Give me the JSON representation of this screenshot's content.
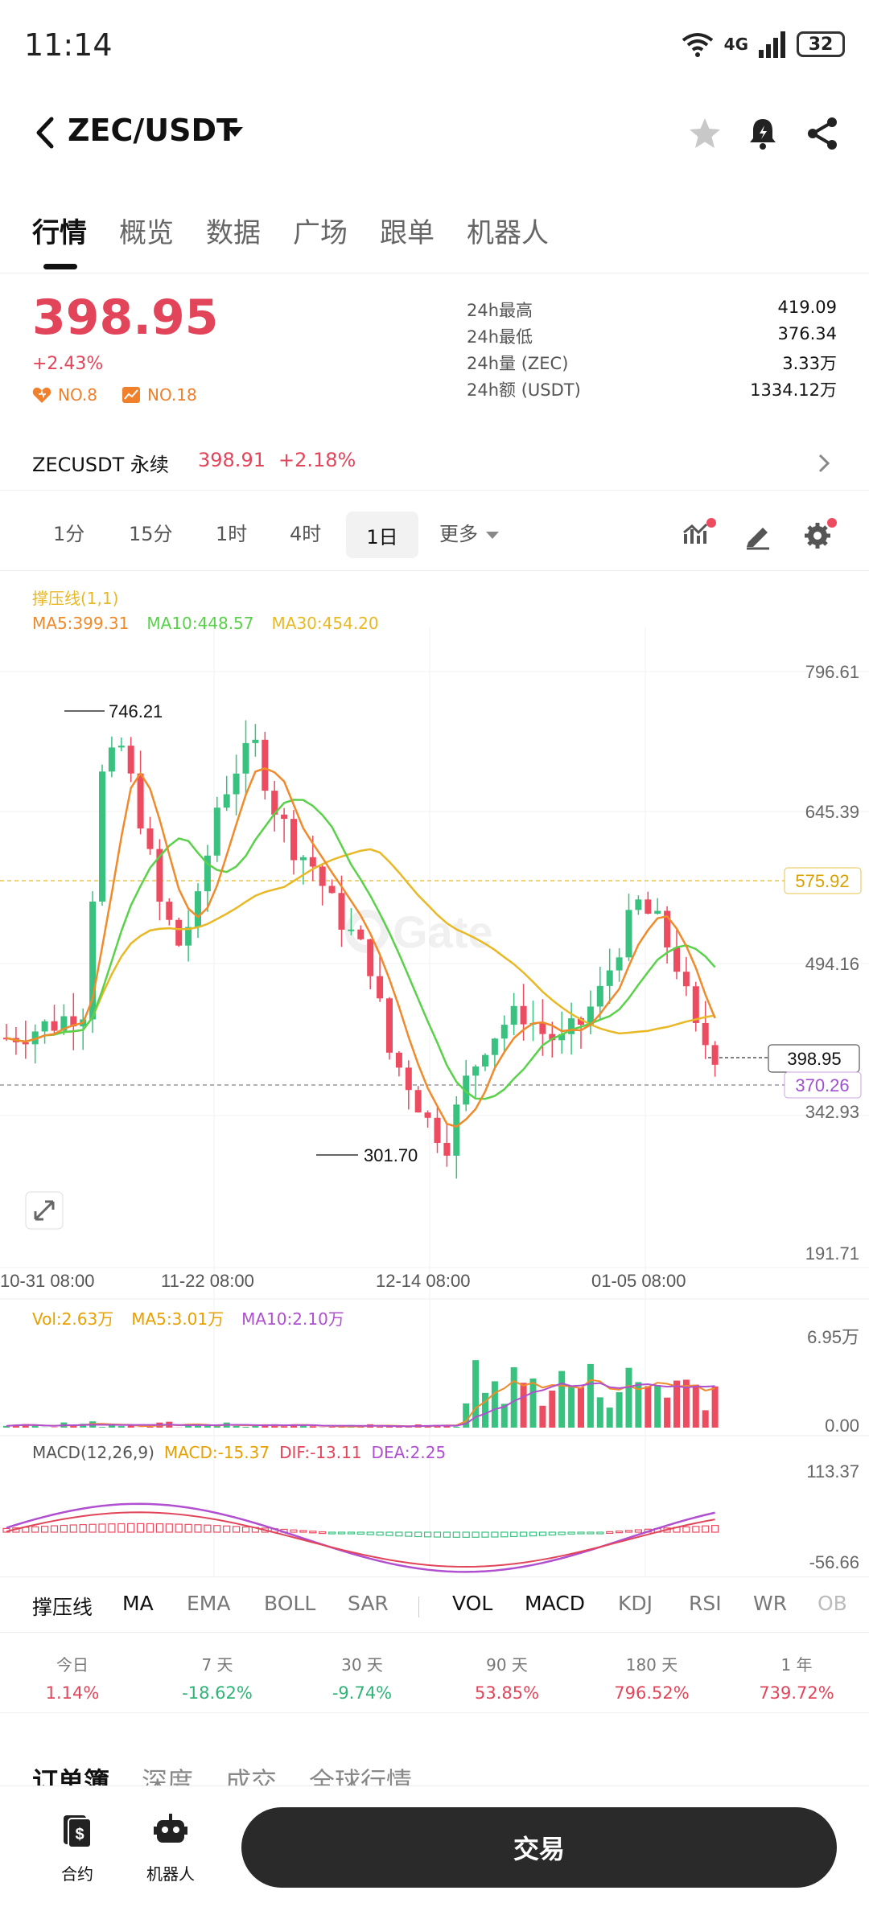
{
  "status": {
    "time": "11:14",
    "network": "4G",
    "battery": "32"
  },
  "header": {
    "pair": "ZEC/USDT"
  },
  "tabs": [
    "行情",
    "概览",
    "数据",
    "广场",
    "跟单",
    "机器人"
  ],
  "price": {
    "last": "398.95",
    "change": "+2.43%",
    "rank1": "NO.8",
    "rank2": "NO.18"
  },
  "stats": [
    {
      "label": "24h最高",
      "value": "419.09"
    },
    {
      "label": "24h最低",
      "value": "376.34"
    },
    {
      "label": "24h量 (ZEC)",
      "value": "3.33万"
    },
    {
      "label": "24h额 (USDT)",
      "value": "1334.12万"
    }
  ],
  "perp": {
    "name": "ZECUSDT 永续",
    "price": "398.91",
    "change": "+2.18%"
  },
  "timeframes": [
    "1分",
    "15分",
    "1时",
    "4时",
    "1日",
    "更多"
  ],
  "legend": {
    "line1": "撑压线(1,1)",
    "ma5": "MA5:399.31",
    "ma10": "MA10:448.57",
    "ma30": "MA30:454.20"
  },
  "chart_data": {
    "type": "candlestick",
    "y_axis_ticks": [
      "796.61",
      "645.39",
      "494.16",
      "342.93",
      "191.71"
    ],
    "x_axis_ticks": [
      "10-31 08:00",
      "11-22 08:00",
      "12-14 08:00",
      "01-05 08:00"
    ],
    "annotations": {
      "high": "746.21",
      "low": "301.70",
      "line_575": "575.92",
      "current": "398.95",
      "line_370": "370.26"
    },
    "watermark": "Gate",
    "volume_ticks": [
      "6.95万",
      "0.00"
    ],
    "macd_ticks": [
      "113.37",
      "-56.66"
    ],
    "colors": {
      "up": "#39c27f",
      "down": "#ed4b60",
      "ma5": "#f08a2b",
      "ma10": "#5ad14a",
      "ma30": "#e8b825",
      "purple": "#b04fd0"
    }
  },
  "volume_legend": {
    "vol": "Vol:2.63万",
    "ma5": "MA5:3.01万",
    "ma10": "MA10:2.10万"
  },
  "macd_legend": {
    "name": "MACD(12,26,9)",
    "macd": "MACD:-15.37",
    "dif": "DIF:-13.11",
    "dea": "DEA:2.25"
  },
  "indicators": [
    "撑压线",
    "MA",
    "EMA",
    "BOLL",
    "SAR",
    "VOL",
    "MACD",
    "KDJ",
    "RSI",
    "WR",
    "OB"
  ],
  "performance": [
    {
      "label": "今日",
      "value": "1.14%"
    },
    {
      "label": "7 天",
      "value": "-18.62%"
    },
    {
      "label": "30 天",
      "value": "-9.74%"
    },
    {
      "label": "90 天",
      "value": "53.85%"
    },
    {
      "label": "180 天",
      "value": "796.52%"
    },
    {
      "label": "1 年",
      "value": "739.72%"
    }
  ],
  "orderbook_tabs": [
    "订单簿",
    "深度",
    "成交",
    "全球行情"
  ],
  "bottom": {
    "contract": "合约",
    "robot": "机器人",
    "trade": "交易"
  }
}
